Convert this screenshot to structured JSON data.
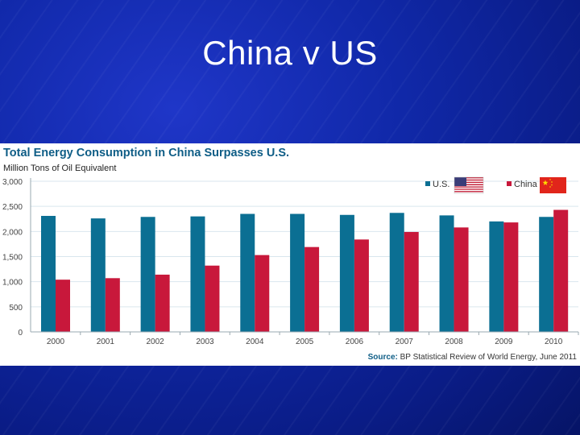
{
  "slide": {
    "title": "China v US"
  },
  "colors": {
    "us": "#0b6f93",
    "china": "#c8183b",
    "grid": "#d9e6ee",
    "background": "#1028a8"
  },
  "chart_data": {
    "type": "bar",
    "title": "Total Energy Consumption in China Surpasses U.S.",
    "ylabel": "Million Tons of Oil Equivalent",
    "xlabel": "",
    "categories": [
      "2000",
      "2001",
      "2002",
      "2003",
      "2004",
      "2005",
      "2006",
      "2007",
      "2008",
      "2009",
      "2010"
    ],
    "series": [
      {
        "name": "U.S.",
        "values": [
          2310,
          2260,
          2290,
          2300,
          2350,
          2350,
          2330,
          2370,
          2320,
          2200,
          2290
        ]
      },
      {
        "name": "China",
        "values": [
          1040,
          1070,
          1140,
          1320,
          1530,
          1690,
          1840,
          1990,
          2080,
          2180,
          2430
        ]
      }
    ],
    "ylim": [
      0,
      3000
    ],
    "yticks": [
      "0",
      "500",
      "1,000",
      "1,500",
      "2,000",
      "2,500",
      "3,000"
    ],
    "ytick_values": [
      0,
      500,
      1000,
      1500,
      2000,
      2500,
      3000
    ],
    "legend": [
      "U.S.",
      "China"
    ],
    "legend_position": "top-right",
    "grid": true,
    "source_label": "Source:",
    "source_text": "BP Statistical Review of World Energy, June 2011"
  }
}
